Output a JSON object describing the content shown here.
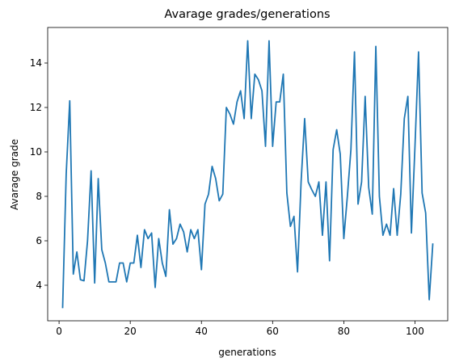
{
  "chart_data": {
    "type": "line",
    "title": "Avarage grades/generations",
    "xlabel": "generations",
    "ylabel": "Avarage grade",
    "xlim": [
      -3.2,
      109.2
    ],
    "ylim": [
      2.4,
      15.6
    ],
    "xticks": [
      0,
      20,
      40,
      60,
      80,
      100
    ],
    "yticks": [
      4,
      6,
      8,
      10,
      12,
      14
    ],
    "grid": false,
    "legend": "none",
    "series": [
      {
        "color": "#1f77b4",
        "x": [
          1,
          2,
          3,
          4,
          5,
          6,
          7,
          8,
          9,
          10,
          11,
          12,
          13,
          14,
          15,
          16,
          17,
          18,
          19,
          20,
          21,
          22,
          23,
          24,
          25,
          26,
          27,
          28,
          29,
          30,
          31,
          32,
          33,
          34,
          35,
          36,
          37,
          38,
          39,
          40,
          41,
          42,
          43,
          44,
          45,
          46,
          47,
          48,
          49,
          50,
          51,
          52,
          53,
          54,
          55,
          56,
          57,
          58,
          59,
          60,
          61,
          62,
          63,
          64,
          65,
          66,
          67,
          68,
          69,
          70,
          71,
          72,
          73,
          74,
          75,
          76,
          77,
          78,
          79,
          80,
          81,
          82,
          83,
          84,
          85,
          86,
          87,
          88,
          89,
          90,
          91,
          92,
          93,
          94,
          95,
          96,
          97,
          98,
          99,
          100,
          101,
          102,
          103,
          104,
          105
        ],
        "y": [
          3.0,
          9.0,
          12.3,
          4.5,
          5.5,
          4.25,
          4.2,
          6.0,
          9.15,
          4.1,
          8.8,
          5.6,
          5.0,
          4.15,
          4.15,
          4.15,
          5.0,
          5.0,
          4.15,
          5.0,
          5.0,
          6.25,
          4.8,
          6.5,
          6.1,
          6.35,
          3.9,
          6.1,
          5.0,
          4.4,
          7.4,
          5.85,
          6.1,
          6.75,
          6.4,
          5.5,
          6.5,
          6.1,
          6.5,
          4.7,
          7.65,
          8.1,
          9.35,
          8.8,
          7.8,
          8.1,
          12.0,
          11.7,
          11.25,
          12.25,
          12.75,
          11.5,
          15.0,
          11.5,
          13.5,
          13.25,
          12.75,
          10.25,
          15.0,
          10.25,
          12.25,
          12.25,
          13.5,
          8.15,
          6.65,
          7.1,
          4.6,
          8.65,
          11.5,
          8.65,
          8.3,
          8.0,
          8.65,
          6.25,
          8.65,
          5.1,
          10.1,
          11.0,
          9.9,
          6.1,
          8.0,
          10.1,
          14.5,
          7.65,
          8.65,
          12.5,
          8.4,
          7.2,
          14.75,
          8.0,
          6.25,
          6.75,
          6.25,
          8.35,
          6.25,
          8.1,
          11.5,
          12.5,
          6.35,
          10.25,
          14.5,
          8.15,
          7.25,
          3.35,
          5.85
        ]
      }
    ]
  }
}
